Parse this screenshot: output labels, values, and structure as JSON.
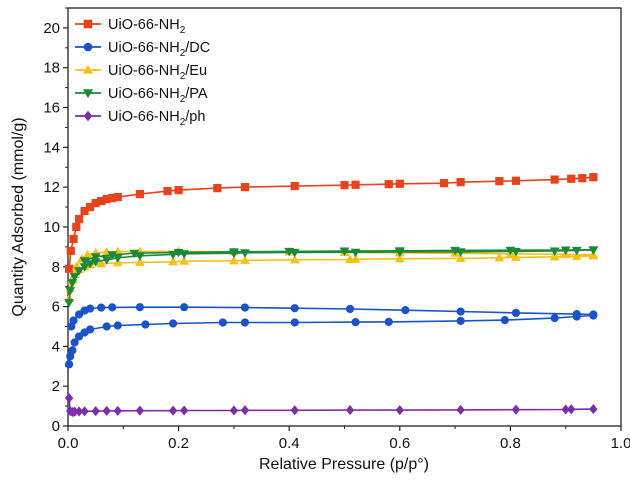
{
  "chart_data": {
    "type": "line",
    "xlabel": "Relative Pressure (p/p°)",
    "ylabel": "Quantity Adsorbed (mmol/g)",
    "xlim": [
      0,
      1.0
    ],
    "ylim": [
      0,
      21
    ],
    "x_ticks": [
      "0.0",
      "0.2",
      "0.4",
      "0.6",
      "0.8",
      "1.0"
    ],
    "x_tick_values": [
      0,
      0.2,
      0.4,
      0.6,
      0.8,
      1.0
    ],
    "y_ticks": [
      "0",
      "2",
      "4",
      "6",
      "8",
      "10",
      "12",
      "14",
      "16",
      "18",
      "20"
    ],
    "y_tick_values": [
      0,
      2,
      4,
      6,
      8,
      10,
      12,
      14,
      16,
      18,
      20
    ],
    "grid": false,
    "legend_position": "top-left",
    "series": [
      {
        "name": "UiO-66-NH2",
        "legend_base": "UiO-66-NH",
        "legend_sub": "2",
        "legend_suffix": "",
        "color": "#e8431c",
        "marker": "square",
        "adsorption": {
          "x": [
            0.002,
            0.005,
            0.01,
            0.015,
            0.02,
            0.03,
            0.04,
            0.05,
            0.06,
            0.07,
            0.08,
            0.09,
            0.13,
            0.18,
            0.2,
            0.27,
            0.32,
            0.41,
            0.5,
            0.52,
            0.58,
            0.6,
            0.68,
            0.71,
            0.78,
            0.81,
            0.88,
            0.91,
            0.93,
            0.95
          ],
          "y": [
            7.9,
            8.8,
            9.4,
            10.0,
            10.4,
            10.8,
            11.0,
            11.2,
            11.3,
            11.4,
            11.45,
            11.5,
            11.65,
            11.8,
            11.85,
            11.95,
            12.0,
            12.05,
            12.1,
            12.12,
            12.15,
            12.17,
            12.2,
            12.25,
            12.3,
            12.32,
            12.38,
            12.42,
            12.45,
            12.5
          ]
        },
        "desorption": {
          "x": [],
          "y": []
        }
      },
      {
        "name": "UiO-66-NH2/DC",
        "legend_base": "UiO-66-NH",
        "legend_sub": "2",
        "legend_suffix": "/DC",
        "color": "#1a53c7",
        "marker": "circle",
        "adsorption": {
          "x": [
            0.002,
            0.004,
            0.008,
            0.012,
            0.02,
            0.03,
            0.04,
            0.07,
            0.09,
            0.14,
            0.19,
            0.28,
            0.32,
            0.41,
            0.52,
            0.58,
            0.71,
            0.79,
            0.88,
            0.92,
            0.95
          ],
          "y": [
            3.1,
            3.5,
            3.8,
            4.2,
            4.5,
            4.7,
            4.85,
            5.0,
            5.05,
            5.1,
            5.15,
            5.2,
            5.2,
            5.2,
            5.22,
            5.23,
            5.28,
            5.32,
            5.42,
            5.5,
            5.55
          ]
        },
        "desorption": {
          "x": [
            0.95,
            0.92,
            0.81,
            0.71,
            0.61,
            0.51,
            0.41,
            0.32,
            0.21,
            0.13,
            0.08,
            0.06,
            0.04,
            0.03,
            0.02,
            0.01,
            0.006
          ],
          "y": [
            5.6,
            5.62,
            5.68,
            5.75,
            5.82,
            5.88,
            5.92,
            5.95,
            5.97,
            5.97,
            5.96,
            5.95,
            5.9,
            5.8,
            5.6,
            5.3,
            5.0
          ]
        }
      },
      {
        "name": "UiO-66-NH2/Eu",
        "legend_base": "UiO-66-NH",
        "legend_sub": "2",
        "legend_suffix": "/Eu",
        "color": "#f5c01a",
        "marker": "triangle-up",
        "adsorption": {
          "x": [
            0.002,
            0.004,
            0.008,
            0.012,
            0.02,
            0.03,
            0.04,
            0.06,
            0.09,
            0.13,
            0.19,
            0.21,
            0.3,
            0.32,
            0.41,
            0.51,
            0.52,
            0.6,
            0.71,
            0.78,
            0.81,
            0.88,
            0.92,
            0.95
          ],
          "y": [
            6.4,
            6.9,
            7.3,
            7.6,
            7.85,
            8.0,
            8.1,
            8.15,
            8.2,
            8.22,
            8.25,
            8.28,
            8.3,
            8.32,
            8.35,
            8.36,
            8.38,
            8.4,
            8.42,
            8.45,
            8.47,
            8.5,
            8.52,
            8.55
          ]
        },
        "desorption": {
          "x": [
            0.95,
            0.9,
            0.8,
            0.7,
            0.6,
            0.5,
            0.4,
            0.3,
            0.2,
            0.13,
            0.09,
            0.07,
            0.05,
            0.035,
            0.025,
            0.015,
            0.008
          ],
          "y": [
            8.6,
            8.62,
            8.65,
            8.68,
            8.7,
            8.72,
            8.74,
            8.75,
            8.77,
            8.77,
            8.76,
            8.74,
            8.7,
            8.6,
            8.4,
            8.0,
            7.4
          ]
        }
      },
      {
        "name": "UiO-66-NH2/PA",
        "legend_base": "UiO-66-NH",
        "legend_sub": "2",
        "legend_suffix": "/PA",
        "color": "#1a8a3a",
        "marker": "triangle-down",
        "adsorption": {
          "x": [
            0.002,
            0.004,
            0.008,
            0.012,
            0.02,
            0.03,
            0.04,
            0.05,
            0.07,
            0.09,
            0.13,
            0.19,
            0.21,
            0.3,
            0.32,
            0.41,
            0.52,
            0.6,
            0.71,
            0.81,
            0.88,
            0.92,
            0.95
          ],
          "y": [
            6.2,
            6.8,
            7.2,
            7.5,
            7.8,
            8.0,
            8.15,
            8.25,
            8.35,
            8.45,
            8.55,
            8.62,
            8.65,
            8.68,
            8.7,
            8.72,
            8.73,
            8.74,
            8.75,
            8.77,
            8.79,
            8.82,
            8.85
          ]
        },
        "desorption": {
          "x": [
            0.95,
            0.9,
            0.8,
            0.7,
            0.6,
            0.5,
            0.4,
            0.3,
            0.2,
            0.12,
            0.08,
            0.05,
            0.03
          ],
          "y": [
            8.85,
            8.84,
            8.83,
            8.82,
            8.8,
            8.79,
            8.77,
            8.75,
            8.72,
            8.68,
            8.6,
            8.5,
            8.3
          ]
        }
      },
      {
        "name": "UiO-66-NH2/ph",
        "legend_base": "UiO-66-NH",
        "legend_sub": "2",
        "legend_suffix": "/ph",
        "color": "#7b2fa8",
        "marker": "diamond",
        "adsorption": {
          "x": [
            0.002,
            0.004,
            0.008,
            0.012,
            0.02,
            0.03,
            0.05,
            0.07,
            0.09,
            0.13,
            0.19,
            0.21,
            0.3,
            0.32,
            0.41,
            0.51,
            0.6,
            0.71,
            0.81,
            0.9,
            0.91,
            0.95
          ],
          "y": [
            1.4,
            0.75,
            0.7,
            0.72,
            0.73,
            0.74,
            0.75,
            0.76,
            0.76,
            0.77,
            0.77,
            0.78,
            0.78,
            0.79,
            0.79,
            0.8,
            0.8,
            0.81,
            0.82,
            0.83,
            0.84,
            0.85
          ]
        },
        "desorption": {
          "x": [],
          "y": []
        }
      }
    ]
  }
}
